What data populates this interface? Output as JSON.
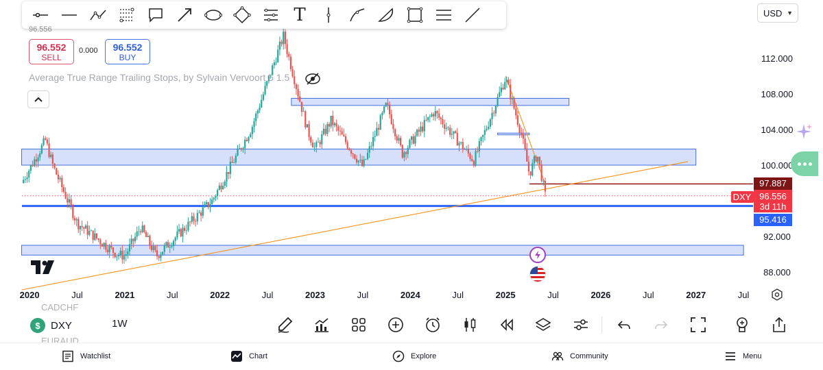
{
  "toolbar": {
    "tools": [
      "cursor-line",
      "horizontal-line",
      "polyline",
      "fib-retracement",
      "callout",
      "arrow",
      "ellipse",
      "rotated-rectangle",
      "parallel-channel",
      "text",
      "vertical-line",
      "curve",
      "arc",
      "rectangle",
      "horizontal-ray",
      "trend-line"
    ],
    "text_tool_label": "T"
  },
  "currency": {
    "label": "USD"
  },
  "ghost_price_top": "96.556",
  "trade": {
    "sell_price": "96.552",
    "sell_label": "SELL",
    "spread": "0.000",
    "buy_price": "96.552",
    "buy_label": "BUY"
  },
  "indicator": {
    "label": "Average True Range Trailing Stops, by Sylvain Vervoort 5 1.5"
  },
  "chart_data": {
    "type": "candlestick",
    "symbol": "DXY",
    "interval": "1W",
    "x_tick_labels": [
      "2020",
      "Jul",
      "2021",
      "Jul",
      "2022",
      "Jul",
      "2023",
      "Jul",
      "2024",
      "Jul",
      "2025",
      "Jul",
      "2026",
      "Jul",
      "2027",
      "Jul"
    ],
    "y_tick_labels": [
      "112.000",
      "108.000",
      "104.000",
      "100.000",
      "92.000",
      "88.000"
    ],
    "ylim": [
      87,
      115
    ],
    "approx_close_path": [
      {
        "t": "2019-12",
        "v": 98.0
      },
      {
        "t": "2020-03",
        "v": 102.8
      },
      {
        "t": "2020-04",
        "v": 99.8
      },
      {
        "t": "2020-07",
        "v": 93.5
      },
      {
        "t": "2020-12",
        "v": 90.0
      },
      {
        "t": "2021-01",
        "v": 89.8
      },
      {
        "t": "2021-03",
        "v": 93.0
      },
      {
        "t": "2021-05",
        "v": 89.8
      },
      {
        "t": "2021-09",
        "v": 93.3
      },
      {
        "t": "2021-12",
        "v": 96.0
      },
      {
        "t": "2022-05",
        "v": 104.2
      },
      {
        "t": "2022-09",
        "v": 114.5
      },
      {
        "t": "2022-12",
        "v": 104.0
      },
      {
        "t": "2023-01",
        "v": 101.8
      },
      {
        "t": "2023-03",
        "v": 105.0
      },
      {
        "t": "2023-07",
        "v": 99.8
      },
      {
        "t": "2023-10",
        "v": 106.8
      },
      {
        "t": "2023-12",
        "v": 101.3
      },
      {
        "t": "2024-04",
        "v": 106.0
      },
      {
        "t": "2024-09",
        "v": 100.5
      },
      {
        "t": "2025-01",
        "v": 109.8
      },
      {
        "t": "2025-03",
        "v": 103.5
      },
      {
        "t": "2025-04",
        "v": 99.0
      },
      {
        "t": "2025-05",
        "v": 101.3
      },
      {
        "t": "2025-06",
        "v": 96.556
      }
    ],
    "zones": [
      {
        "name": "zone-top",
        "from": "2022-10",
        "to": "2025-09",
        "low": 106.7,
        "high": 107.5
      },
      {
        "name": "zone-middle",
        "from": "2019-12",
        "to": "2027-01",
        "low": 100.0,
        "high": 101.8
      },
      {
        "name": "zone-bottom",
        "from": "2019-12",
        "to": "2027-07",
        "low": 89.9,
        "high": 91.0
      },
      {
        "name": "zone-small",
        "from": "2024-12",
        "to": "2025-04",
        "low": 103.4,
        "high": 103.6
      }
    ],
    "lines": [
      {
        "name": "support-line",
        "kind": "horizontal",
        "value": 95.416,
        "color": "#2962ff"
      },
      {
        "name": "resistance-line",
        "kind": "horizontal",
        "value": 97.887,
        "from": "2025-04",
        "color": "#8b0000"
      },
      {
        "name": "long-trendline",
        "kind": "trend",
        "from": [
          "2019-12",
          86.0
        ],
        "to": [
          "2026-12",
          100.4
        ],
        "color": "#f7931a"
      },
      {
        "name": "down-trendline",
        "kind": "trend",
        "from": [
          "2025-01",
          110.0
        ],
        "to": [
          "2025-06",
          97.9
        ],
        "color": "#f7931a"
      }
    ],
    "price_labels": {
      "resistance": "97.887",
      "symbol": "DXY",
      "last": "96.556",
      "countdown": "3d 11h",
      "support": "95.416"
    },
    "colors": {
      "up": "#26a69a",
      "down": "#ef5350",
      "zone_fill": "#c8d6f8",
      "zone_stroke": "#3f6ee0"
    }
  },
  "bottom": {
    "ghost_above": "CADCHF",
    "ghost_below": "EURAUD",
    "symbol_badge": "$",
    "symbol": "DXY",
    "interval": "1W",
    "tools": [
      "pen-icon",
      "indicators-icon",
      "layouts-icon",
      "add-icon",
      "alert-icon",
      "chart-type-icon",
      "replay-icon",
      "layers-icon",
      "settings-sliders-icon",
      "undo-icon",
      "redo-icon",
      "fullscreen-icon",
      "idea-icon",
      "share-icon"
    ]
  },
  "nav": {
    "watchlist": "Watchlist",
    "chart": "Chart",
    "explore": "Explore",
    "community": "Community",
    "menu": "Menu"
  }
}
